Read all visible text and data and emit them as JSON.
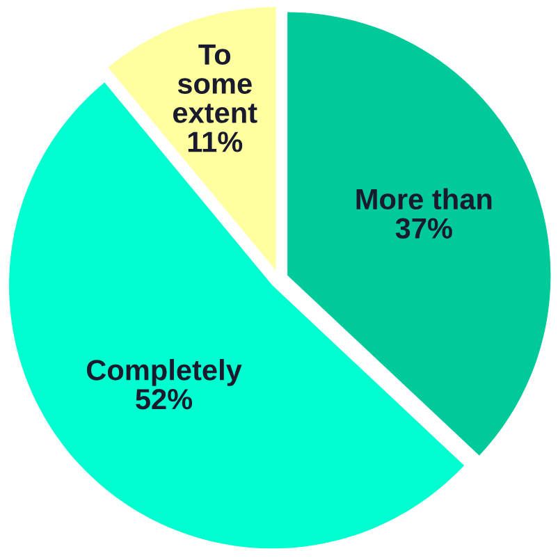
{
  "chart_data": {
    "type": "pie",
    "categories": [
      "More than",
      "Completely",
      "To\nsome\nextent"
    ],
    "values": [
      37,
      52,
      11
    ],
    "value_labels": [
      "37%",
      "52%",
      "11%"
    ],
    "colors": [
      "#00c99a",
      "#00ffd0",
      "#ffffa0"
    ]
  }
}
